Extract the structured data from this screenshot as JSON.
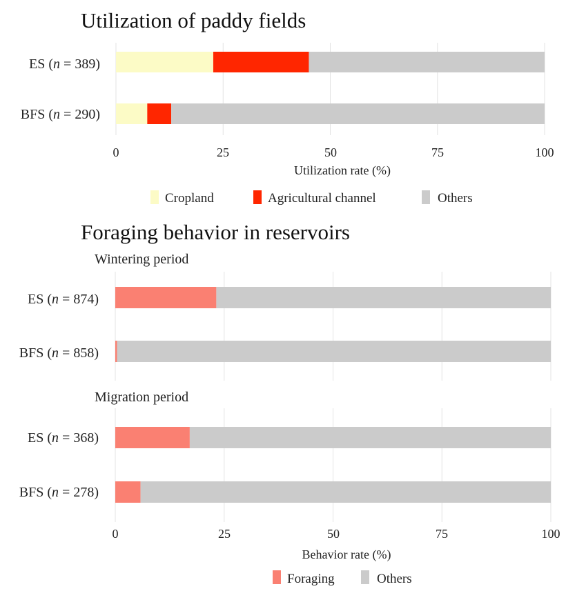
{
  "chart_data": [
    {
      "type": "bar",
      "orientation": "horizontal",
      "stacked": true,
      "title": "Utilization of paddy fields",
      "categories": [
        {
          "prefix": "ES (",
          "n_var": "n",
          "n_text": " = 389)"
        },
        {
          "prefix": "BFS (",
          "n_var": "n",
          "n_text": " = 290)"
        }
      ],
      "series": [
        {
          "name": "Cropland",
          "color": "#fcfbc6",
          "values": [
            22.7,
            7.3
          ]
        },
        {
          "name": "Agricultural channel",
          "color": "#ff2600",
          "values": [
            22.3,
            5.6
          ]
        },
        {
          "name": "Others",
          "color": "#cbcbcb",
          "values": [
            55.0,
            87.1
          ]
        }
      ],
      "xlabel": "Utilization rate (%)",
      "xlim": [
        0,
        100
      ],
      "xticks": [
        "0",
        "25",
        "50",
        "75",
        "100"
      ],
      "grid": true,
      "legend": "bottom"
    },
    {
      "type": "bar",
      "orientation": "horizontal",
      "stacked": true,
      "title": "Foraging behavior in reservoirs",
      "panels": [
        {
          "label": "Wintering period",
          "categories": [
            {
              "prefix": "ES (",
              "n_var": "n",
              "n_text": " = 874)"
            },
            {
              "prefix": "BFS (",
              "n_var": "n",
              "n_text": " = 858)"
            }
          ],
          "foraging": [
            23.2,
            0.4
          ],
          "others": [
            76.8,
            99.6
          ]
        },
        {
          "label": "Migration period",
          "categories": [
            {
              "prefix": "ES (",
              "n_var": "n",
              "n_text": " = 368)"
            },
            {
              "prefix": "BFS (",
              "n_var": "n",
              "n_text": " = 278)"
            }
          ],
          "foraging": [
            17.1,
            5.8
          ],
          "others": [
            82.9,
            94.2
          ]
        }
      ],
      "series": [
        {
          "name": "Foraging",
          "color": "#fa8072"
        },
        {
          "name": "Others",
          "color": "#cbcbcb"
        }
      ],
      "xlabel": "Behavior rate (%)",
      "xlim": [
        0,
        100
      ],
      "xticks": [
        "0",
        "25",
        "50",
        "75",
        "100"
      ],
      "grid": true,
      "legend": "bottom"
    }
  ]
}
